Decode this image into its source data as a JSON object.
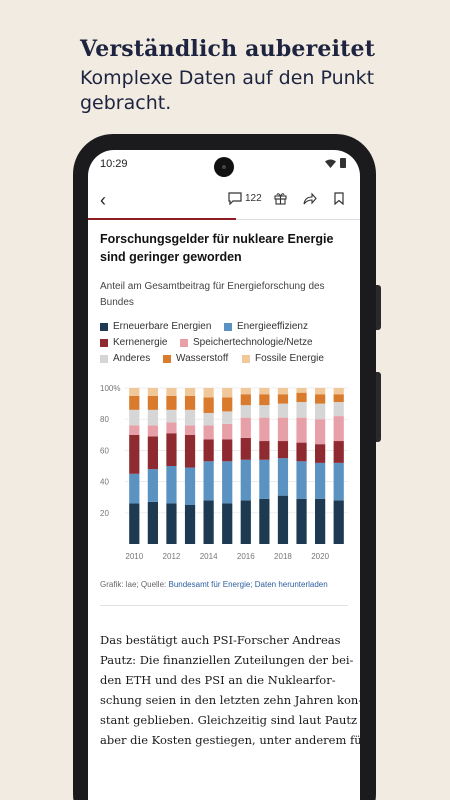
{
  "promo": {
    "title": "Verständlich aubereitet",
    "subtitle": "Komplexe Daten auf den Punkt gebracht."
  },
  "status_bar": {
    "time": "10:29"
  },
  "toolbar": {
    "comment_count": "122"
  },
  "article": {
    "chart_title": "Forschungsgelder für nukleare Energie sind geringer geworden",
    "chart_subtitle": "Anteil am Gesamtbeitrag für Energieforschung des Bundes",
    "source_prefix": "Grafik: lae; Quelle: ",
    "source_link": "Bundesamt für Energie; Daten herunterladen",
    "body_lines": [
      "Das bestätigt auch PSI-Forscher Andreas",
      "Pautz: Die finanziellen Zuteilungen der bei-",
      "den ETH und des PSI an die Nuklearfor-",
      "schung seien in den letzten zehn Jahren kon-",
      "stant geblieben. Gleichzeitig sind laut Pautz",
      "aber die Kosten gestiegen, unter anderem für"
    ]
  },
  "colors": {
    "erneuerbare": "#1e3a52",
    "effizienz": "#5a92c2",
    "kern": "#8e2a30",
    "speicher": "#e8a0a8",
    "anderes": "#d6d6d6",
    "wasserstoff": "#d97a2c",
    "fossile": "#f0c89a",
    "accent": "#8c1b22"
  },
  "chart_data": {
    "type": "bar",
    "stacked": true,
    "categories": [
      "2010",
      "2011",
      "2012",
      "2013",
      "2014",
      "2015",
      "2016",
      "2017",
      "2018",
      "2019",
      "2020",
      "2021"
    ],
    "x_tick_labels": [
      "2010",
      "2012",
      "2014",
      "2016",
      "2018",
      "2020"
    ],
    "y_ticks": [
      "20",
      "40",
      "60",
      "80",
      "100%"
    ],
    "ylim": [
      0,
      100
    ],
    "series": [
      {
        "name": "Erneuerbare Energien",
        "color_key": "erneuerbare",
        "values": [
          26,
          27,
          26,
          25,
          28,
          26,
          28,
          29,
          31,
          29,
          29,
          28
        ]
      },
      {
        "name": "Energieeffizienz",
        "color_key": "effizienz",
        "values": [
          19,
          21,
          24,
          24,
          25,
          27,
          26,
          25,
          24,
          24,
          23,
          24
        ]
      },
      {
        "name": "Kernenergie",
        "color_key": "kern",
        "values": [
          25,
          21,
          21,
          21,
          14,
          14,
          14,
          12,
          11,
          12,
          12,
          14
        ]
      },
      {
        "name": "Speichertechnologie/Netze",
        "color_key": "speicher",
        "values": [
          6,
          7,
          7,
          6,
          9,
          10,
          13,
          15,
          15,
          16,
          16,
          16
        ]
      },
      {
        "name": "Anderes",
        "color_key": "anderes",
        "values": [
          10,
          10,
          8,
          10,
          8,
          8,
          8,
          8,
          9,
          10,
          10,
          9
        ]
      },
      {
        "name": "Wasserstoff",
        "color_key": "wasserstoff",
        "values": [
          9,
          9,
          9,
          9,
          10,
          9,
          7,
          7,
          6,
          6,
          6,
          5
        ]
      },
      {
        "name": "Fossile Energie",
        "color_key": "fossile",
        "values": [
          5,
          5,
          5,
          5,
          6,
          6,
          4,
          4,
          4,
          3,
          4,
          4
        ]
      }
    ],
    "grid": true
  }
}
